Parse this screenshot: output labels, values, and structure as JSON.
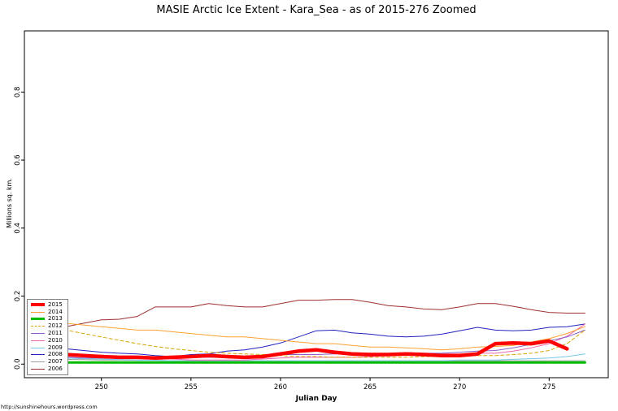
{
  "page": {
    "footer": "http://sunshinehours.wordpress.com"
  },
  "chart_data": {
    "type": "line",
    "title": "MASIE Arctic Ice Extent - Kara_Sea - as of 2015-276 Zoomed",
    "xlabel": "Julian Day",
    "ylabel": "Millions sq. km.",
    "xlim": [
      245.7,
      278.3
    ],
    "ylim": [
      -0.04,
      0.98
    ],
    "x_ticks": [
      250,
      255,
      260,
      265,
      270,
      275
    ],
    "y_ticks": [
      0.0,
      0.2,
      0.4,
      0.6,
      0.8
    ],
    "grid": false,
    "legend_position": "bottom-left",
    "x_start": 247,
    "series": [
      {
        "name": "2015",
        "color": "#FF0000",
        "width": 4.5,
        "dash": null,
        "values": [
          0.03,
          0.028,
          0.025,
          0.022,
          0.02,
          0.02,
          0.018,
          0.02,
          0.022,
          0.025,
          0.022,
          0.02,
          0.022,
          0.03,
          0.038,
          0.042,
          0.035,
          0.03,
          0.028,
          0.028,
          0.03,
          0.028,
          0.025,
          0.025,
          0.03,
          0.06,
          0.062,
          0.06,
          0.068,
          0.045
        ]
      },
      {
        "name": "2014",
        "color": "#FFA030",
        "width": 1,
        "dash": null,
        "values": [
          0.125,
          0.12,
          0.115,
          0.11,
          0.105,
          0.1,
          0.1,
          0.095,
          0.09,
          0.085,
          0.08,
          0.08,
          0.075,
          0.07,
          0.065,
          0.06,
          0.06,
          0.055,
          0.05,
          0.05,
          0.048,
          0.045,
          0.042,
          0.045,
          0.05,
          0.052,
          0.055,
          0.065,
          0.075,
          0.09,
          0.11
        ]
      },
      {
        "name": "2013",
        "color": "#00BB00",
        "width": 3,
        "dash": null,
        "values": [
          0.005,
          0.005,
          0.005,
          0.005,
          0.005,
          0.005,
          0.005,
          0.005,
          0.005,
          0.005,
          0.005,
          0.005,
          0.005,
          0.005,
          0.005,
          0.005,
          0.005,
          0.005,
          0.005,
          0.005,
          0.005,
          0.005,
          0.005,
          0.005,
          0.005,
          0.005,
          0.005,
          0.005,
          0.005,
          0.005,
          0.005
        ]
      },
      {
        "name": "2012",
        "color": "#D9A400",
        "width": 1,
        "dash": "4,3",
        "values": [
          0.11,
          0.1,
          0.09,
          0.08,
          0.07,
          0.06,
          0.052,
          0.045,
          0.04,
          0.035,
          0.032,
          0.03,
          0.028,
          0.025,
          0.022,
          0.022,
          0.02,
          0.02,
          0.02,
          0.02,
          0.02,
          0.022,
          0.022,
          0.022,
          0.025,
          0.025,
          0.028,
          0.032,
          0.04,
          0.06,
          0.1
        ]
      },
      {
        "name": "2011",
        "color": "#8B5FC6",
        "width": 1,
        "dash": null,
        "values": [
          0.02,
          0.02,
          0.018,
          0.018,
          0.018,
          0.018,
          0.018,
          0.018,
          0.02,
          0.02,
          0.02,
          0.022,
          0.025,
          0.028,
          0.028,
          0.028,
          0.03,
          0.03,
          0.03,
          0.03,
          0.032,
          0.032,
          0.032,
          0.035,
          0.038,
          0.04,
          0.048,
          0.058,
          0.068,
          0.08,
          0.1
        ]
      },
      {
        "name": "2010",
        "color": "#EE66AA",
        "width": 1,
        "dash": null,
        "values": [
          0.03,
          0.028,
          0.025,
          0.022,
          0.02,
          0.02,
          0.018,
          0.015,
          0.012,
          0.012,
          0.012,
          0.012,
          0.015,
          0.018,
          0.02,
          0.02,
          0.02,
          0.02,
          0.022,
          0.025,
          0.028,
          0.03,
          0.03,
          0.03,
          0.032,
          0.032,
          0.038,
          0.048,
          0.06,
          0.082,
          0.118
        ]
      },
      {
        "name": "2009",
        "color": "#74C8E8",
        "width": 1,
        "dash": null,
        "values": [
          0.02,
          0.018,
          0.016,
          0.015,
          0.013,
          0.012,
          0.011,
          0.01,
          0.01,
          0.01,
          0.01,
          0.01,
          0.01,
          0.01,
          0.01,
          0.01,
          0.01,
          0.01,
          0.01,
          0.01,
          0.01,
          0.01,
          0.01,
          0.012,
          0.012,
          0.012,
          0.014,
          0.016,
          0.018,
          0.022,
          0.03
        ]
      },
      {
        "name": "2008",
        "color": "#2222C2",
        "width": 1,
        "dash": null,
        "values": [
          0.05,
          0.045,
          0.04,
          0.035,
          0.032,
          0.03,
          0.025,
          0.022,
          0.028,
          0.03,
          0.038,
          0.042,
          0.05,
          0.062,
          0.08,
          0.098,
          0.1,
          0.092,
          0.088,
          0.082,
          0.08,
          0.082,
          0.088,
          0.098,
          0.108,
          0.1,
          0.098,
          0.1,
          0.108,
          0.11,
          0.118
        ]
      },
      {
        "name": "2007",
        "color": "#A0A0A0",
        "width": 1,
        "dash": null,
        "values": [
          0.015,
          0.014,
          0.013,
          0.012,
          0.012,
          0.011,
          0.011,
          0.01,
          0.01,
          0.01,
          0.01,
          0.01,
          0.01,
          0.01,
          0.01,
          0.01,
          0.01,
          0.01,
          0.01,
          0.01,
          0.01,
          0.01,
          0.01,
          0.01,
          0.01,
          0.01,
          0.01,
          0.01,
          0.01,
          0.01,
          0.01
        ]
      },
      {
        "name": "2006",
        "color": "#A03030",
        "width": 1,
        "dash": null,
        "values": [
          0.1,
          0.11,
          0.12,
          0.13,
          0.132,
          0.14,
          0.168,
          0.168,
          0.168,
          0.178,
          0.172,
          0.168,
          0.168,
          0.178,
          0.188,
          0.188,
          0.19,
          0.19,
          0.182,
          0.172,
          0.168,
          0.162,
          0.16,
          0.168,
          0.178,
          0.178,
          0.17,
          0.16,
          0.152,
          0.15,
          0.15
        ]
      }
    ]
  }
}
